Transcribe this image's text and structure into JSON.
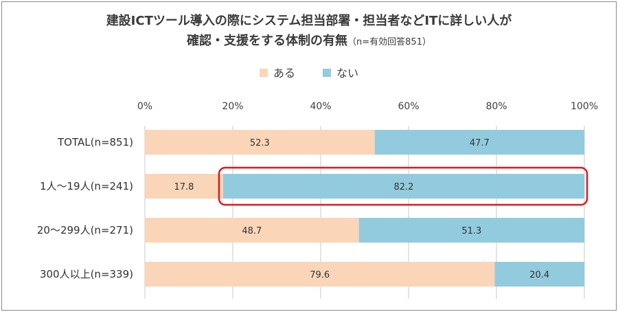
{
  "chart_data": {
    "type": "bar",
    "orientation": "horizontal-stacked-100",
    "title_line1": "建設ICTツール導入の際にシステム担当部署・担当者などITに詳しい人が",
    "title_line2": "確認・支援をする体制の有無",
    "title_note": "（n=有効回答851）",
    "categories": [
      "TOTAL(n=851)",
      "1人～19人(n=241)",
      "20～299人(n=271)",
      "300人以上(n=339)"
    ],
    "series": [
      {
        "name": "ある",
        "color": "#fad5b8",
        "values": [
          52.3,
          17.8,
          48.7,
          79.6
        ]
      },
      {
        "name": "ない",
        "color": "#92cbdd",
        "values": [
          47.7,
          82.2,
          51.3,
          20.4
        ]
      }
    ],
    "value_labels": [
      [
        "52.3",
        "17.8",
        "48.7",
        "79.6"
      ],
      [
        "47.7",
        "82.2",
        "51.3",
        "20.4"
      ]
    ],
    "x_ticks": [
      "0%",
      "20%",
      "40%",
      "60%",
      "80%",
      "100%"
    ],
    "xlim": [
      0,
      100
    ],
    "legend_position": "top-center",
    "highlight": {
      "series": "ない",
      "category": "1人～19人(n=241)",
      "color": "#e0161e"
    },
    "grid": "vertical"
  }
}
